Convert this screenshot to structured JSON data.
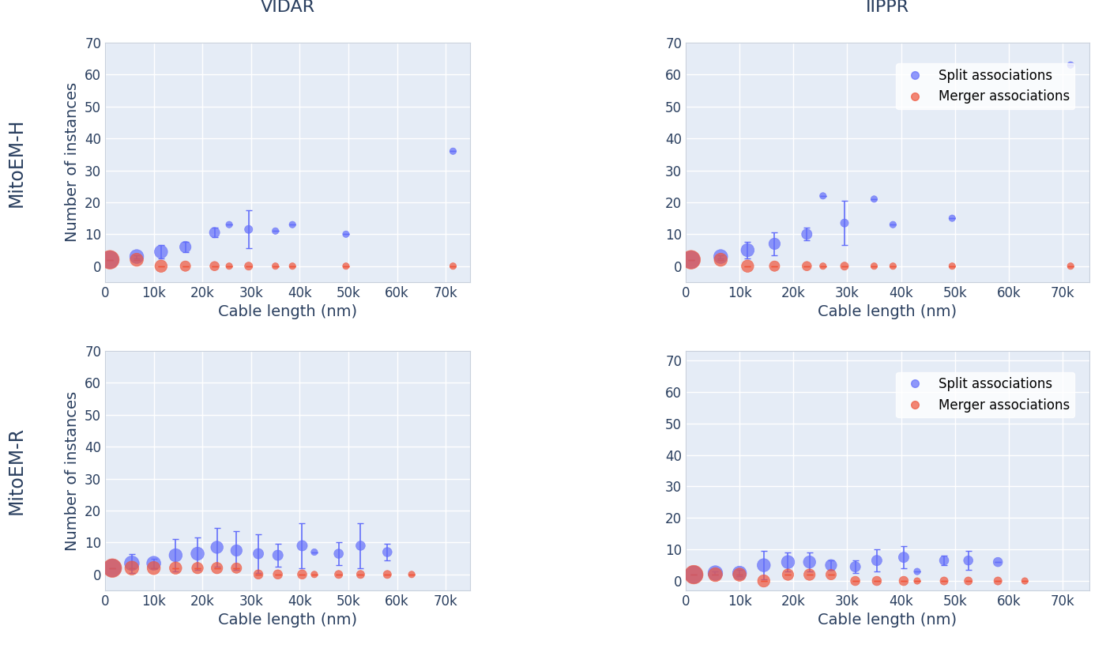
{
  "chart_data": [
    {
      "type": "scatter",
      "title": "VIDAR",
      "annotations": [
        "MitoEM-H"
      ],
      "x_label": "Cable length (nm)",
      "y_label": "Number of instances",
      "xlim": [
        0,
        75000
      ],
      "ylim": [
        -5,
        70
      ],
      "xticks": [
        0,
        {
          "value": 10000,
          "label": "10k"
        },
        {
          "value": 20000,
          "label": "20k"
        },
        {
          "value": 30000,
          "label": "30k"
        },
        {
          "value": 40000,
          "label": "40k"
        },
        {
          "value": 50000,
          "label": "50k"
        },
        {
          "value": 60000,
          "label": "60k"
        },
        {
          "value": 70000,
          "label": "70k"
        }
      ],
      "yticks": [
        0,
        10,
        20,
        30,
        40,
        50,
        60,
        70
      ],
      "grid": true,
      "series": [
        {
          "name": "Split associations",
          "color": "#636efa",
          "x": [
            1000,
            6500,
            11500,
            16500,
            22500,
            25500,
            29500,
            35000,
            38500,
            49500,
            71500
          ],
          "values": [
            2,
            3,
            4.5,
            6,
            10.5,
            13,
            11.5,
            11,
            13,
            10,
            36
          ],
          "errors": [
            0,
            0.5,
            2,
            1.5,
            1.5,
            0,
            6,
            0,
            0,
            0,
            0
          ],
          "sizes": [
            14,
            9,
            8,
            6,
            5,
            2,
            3,
            2,
            2,
            2,
            2
          ]
        },
        {
          "name": "Merger associations",
          "color": "#ef553b",
          "x": [
            1000,
            6500,
            11500,
            16500,
            22500,
            25500,
            29500,
            35000,
            38500,
            49500,
            71500
          ],
          "values": [
            2,
            2,
            0,
            0,
            0,
            0,
            0,
            0,
            0,
            0,
            0
          ],
          "errors": [
            0,
            0,
            0,
            0,
            0,
            0,
            0,
            0,
            0,
            0,
            0
          ],
          "sizes": [
            16,
            8,
            7,
            5,
            4,
            2,
            3,
            2,
            2,
            2,
            2
          ]
        }
      ]
    },
    {
      "type": "scatter",
      "title": "IIPPR",
      "x_label": "Cable length (nm)",
      "xlim": [
        0,
        75000
      ],
      "ylim": [
        -5,
        70
      ],
      "xticks": [
        0,
        {
          "value": 10000,
          "label": "10k"
        },
        {
          "value": 20000,
          "label": "20k"
        },
        {
          "value": 30000,
          "label": "30k"
        },
        {
          "value": 40000,
          "label": "40k"
        },
        {
          "value": 50000,
          "label": "50k"
        },
        {
          "value": 60000,
          "label": "60k"
        },
        {
          "value": 70000,
          "label": "70k"
        }
      ],
      "yticks": [
        0,
        10,
        20,
        30,
        40,
        50,
        60,
        70
      ],
      "grid": true,
      "legend": "upper right",
      "series": [
        {
          "name": "Split associations",
          "color": "#636efa",
          "x": [
            1000,
            6500,
            11500,
            16500,
            22500,
            25500,
            29500,
            35000,
            38500,
            49500,
            71500
          ],
          "values": [
            2,
            3,
            5,
            7,
            10,
            22,
            13.5,
            21,
            13,
            15,
            63
          ],
          "errors": [
            0,
            0.5,
            2.5,
            3.5,
            2,
            0,
            7,
            0,
            0,
            0,
            0
          ],
          "sizes": [
            14,
            9,
            8,
            6,
            5,
            2,
            3,
            2,
            2,
            2,
            2
          ]
        },
        {
          "name": "Merger associations",
          "color": "#ef553b",
          "x": [
            1000,
            6500,
            11500,
            16500,
            22500,
            25500,
            29500,
            35000,
            38500,
            49500,
            71500
          ],
          "values": [
            2,
            2,
            0,
            0,
            0,
            0,
            0,
            0,
            0,
            0,
            0
          ],
          "errors": [
            0,
            0,
            0,
            0,
            0,
            0,
            0,
            0,
            0,
            0,
            0
          ],
          "sizes": [
            16,
            8,
            7,
            5,
            4,
            2,
            3,
            2,
            2,
            2,
            2
          ]
        }
      ]
    },
    {
      "type": "scatter",
      "annotations": [
        "MitoEM-R"
      ],
      "x_label": "Cable length (nm)",
      "y_label": "Number of instances",
      "xlim": [
        0,
        75000
      ],
      "ylim": [
        -5,
        70
      ],
      "xticks": [
        0,
        {
          "value": 10000,
          "label": "10k"
        },
        {
          "value": 20000,
          "label": "20k"
        },
        {
          "value": 30000,
          "label": "30k"
        },
        {
          "value": 40000,
          "label": "40k"
        },
        {
          "value": 50000,
          "label": "50k"
        },
        {
          "value": 60000,
          "label": "60k"
        },
        {
          "value": 70000,
          "label": "70k"
        }
      ],
      "yticks": [
        0,
        10,
        20,
        30,
        40,
        50,
        60,
        70
      ],
      "grid": true,
      "series": [
        {
          "name": "Split associations",
          "color": "#636efa",
          "x": [
            1500,
            5500,
            10000,
            14500,
            19000,
            23000,
            27000,
            31500,
            35500,
            40500,
            43000,
            48000,
            52500,
            58000
          ],
          "values": [
            2,
            3.5,
            3.5,
            6,
            6.5,
            8.5,
            7.5,
            6.5,
            6,
            9,
            7,
            6.5,
            9,
            7
          ],
          "errors": [
            0,
            3,
            1.5,
            5,
            5,
            6,
            6,
            6,
            3.5,
            7,
            0,
            3.5,
            7,
            2.5
          ],
          "sizes": [
            14,
            10,
            9,
            8,
            8,
            7,
            6,
            5,
            5,
            5,
            2,
            4,
            4,
            4
          ]
        },
        {
          "name": "Merger associations",
          "color": "#ef553b",
          "x": [
            1500,
            5500,
            10000,
            14500,
            19000,
            23000,
            27000,
            31500,
            35500,
            40500,
            43000,
            48000,
            52500,
            58000,
            63000
          ],
          "values": [
            2,
            2,
            2,
            2,
            2,
            2,
            2,
            0,
            0,
            0,
            0,
            0,
            0,
            0,
            0
          ],
          "errors": [
            0,
            0,
            0,
            0,
            0,
            0,
            0,
            0,
            0,
            0,
            0,
            0,
            0,
            0,
            0
          ],
          "sizes": [
            16,
            9,
            8,
            7,
            6,
            6,
            5,
            4,
            4,
            4,
            2,
            3,
            3,
            3,
            2
          ]
        }
      ]
    },
    {
      "type": "scatter",
      "x_label": "Cable length (nm)",
      "xlim": [
        0,
        75000
      ],
      "ylim": [
        -3,
        73
      ],
      "xticks": [
        0,
        {
          "value": 10000,
          "label": "10k"
        },
        {
          "value": 20000,
          "label": "20k"
        },
        {
          "value": 30000,
          "label": "30k"
        },
        {
          "value": 40000,
          "label": "40k"
        },
        {
          "value": 50000,
          "label": "50k"
        },
        {
          "value": 60000,
          "label": "60k"
        },
        {
          "value": 70000,
          "label": "70k"
        }
      ],
      "yticks": [
        0,
        10,
        20,
        30,
        40,
        50,
        60,
        70
      ],
      "grid": true,
      "legend": "upper right",
      "series": [
        {
          "name": "Split associations",
          "color": "#636efa",
          "x": [
            1500,
            5500,
            10000,
            14500,
            19000,
            23000,
            27000,
            31500,
            35500,
            40500,
            43000,
            48000,
            52500,
            58000
          ],
          "values": [
            2,
            2.5,
            2.5,
            5,
            6,
            6,
            5,
            4.5,
            6.5,
            7.5,
            3,
            6.5,
            6.5,
            6
          ],
          "errors": [
            0,
            0.5,
            1,
            4.5,
            3,
            3,
            1.5,
            2,
            3.5,
            3.5,
            0,
            1.5,
            3,
            0
          ],
          "sizes": [
            14,
            10,
            9,
            8,
            8,
            7,
            6,
            5,
            5,
            5,
            2,
            4,
            4,
            4
          ]
        },
        {
          "name": "Merger associations",
          "color": "#ef553b",
          "x": [
            1500,
            5500,
            10000,
            14500,
            19000,
            23000,
            27000,
            31500,
            35500,
            40500,
            43000,
            48000,
            52500,
            58000,
            63000
          ],
          "values": [
            2,
            2,
            2,
            0,
            2,
            2,
            2,
            0,
            0,
            0,
            0,
            0,
            0,
            0,
            0
          ],
          "errors": [
            0,
            0,
            0,
            0,
            0,
            0,
            0,
            0,
            0,
            0,
            0,
            0,
            0,
            0,
            0
          ],
          "sizes": [
            16,
            9,
            8,
            7,
            6,
            6,
            5,
            4,
            4,
            4,
            2,
            3,
            3,
            3,
            2
          ]
        }
      ]
    }
  ]
}
